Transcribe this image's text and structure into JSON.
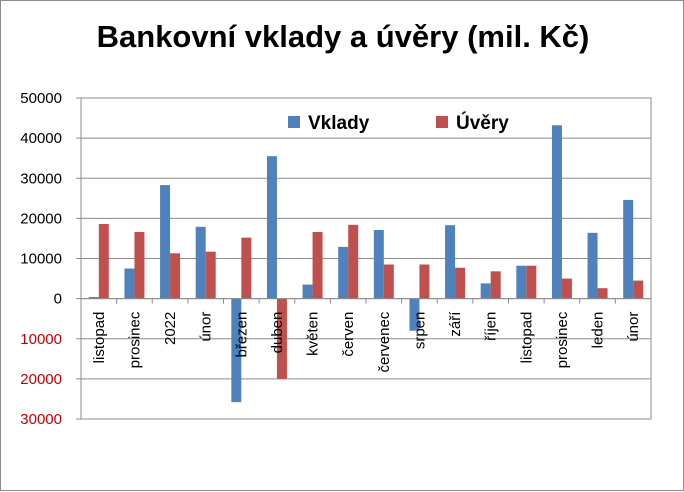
{
  "chart_data": {
    "type": "bar",
    "title": "Bankovní vklady a úvěry (mil. Kč)",
    "xlabel": "",
    "ylabel": "",
    "ylim": [
      -30000,
      50000
    ],
    "yticks": [
      50000,
      40000,
      30000,
      20000,
      10000,
      0,
      -10000,
      -20000,
      -30000
    ],
    "ytick_labels": [
      "50000",
      "40000",
      "30000",
      "20000",
      "10000",
      "0",
      "10000",
      "20000",
      "30000"
    ],
    "categories": [
      "listopad",
      "prosinec",
      "2022",
      "únor",
      "březen",
      "duben",
      "květen",
      "červen",
      "červenec",
      "srpen",
      "září",
      "říjen",
      "listopad",
      "prosinec",
      "leden",
      "únor"
    ],
    "series": [
      {
        "name": "Vklady",
        "color": "#4f81bd",
        "values": [
          400,
          7500,
          28300,
          17900,
          -25800,
          35500,
          3500,
          12900,
          17100,
          -8000,
          18300,
          3800,
          8200,
          43200,
          16400,
          24600
        ]
      },
      {
        "name": "Úvěry",
        "color": "#c0504d",
        "values": [
          18600,
          16600,
          11300,
          11700,
          15200,
          -20000,
          16600,
          18400,
          8500,
          8500,
          7700,
          6800,
          8200,
          5000,
          2600,
          4500
        ]
      }
    ],
    "grid": true,
    "legend_position": "top-right",
    "positive_tick_color": "#000000",
    "negative_tick_color": "#c00000"
  }
}
